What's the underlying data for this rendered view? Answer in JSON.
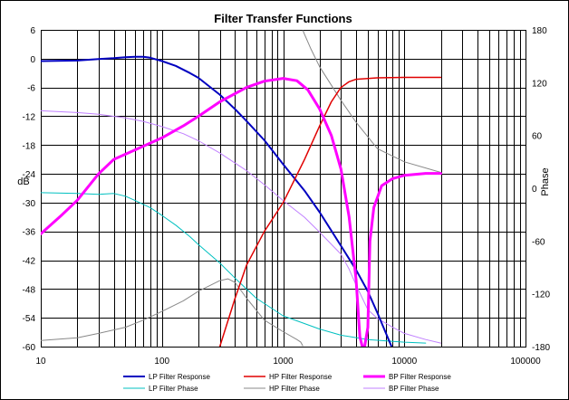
{
  "chart_data": {
    "type": "line",
    "title": "Filter Transfer Functions",
    "ylabel": "dB",
    "y2label": "Phase",
    "xscale": "log",
    "xlim": [
      10,
      100000
    ],
    "ylim": [
      -60,
      6
    ],
    "y2lim": [
      -180,
      180
    ],
    "grid": true,
    "legend_position": "bottom",
    "x_tick_labels": [
      "10",
      "100",
      "1000",
      "10000",
      "100000"
    ],
    "y_tick_labels": [
      "6",
      "0",
      "-6",
      "-12",
      "-18",
      "-24",
      "-30",
      "-36",
      "-42",
      "-48",
      "-54",
      "-60"
    ],
    "y2_tick_labels": [
      "180",
      "120",
      "60",
      "0",
      "-60",
      "-120",
      "-180"
    ],
    "series": [
      {
        "name": "LP Filter Response",
        "axis": "left",
        "color": "#0000c0",
        "width": 2,
        "points": [
          [
            10,
            -0.5
          ],
          [
            20,
            -0.4
          ],
          [
            30,
            -0.1
          ],
          [
            40,
            0.1
          ],
          [
            50,
            0.3
          ],
          [
            60,
            0.4
          ],
          [
            70,
            0.4
          ],
          [
            80,
            0.2
          ],
          [
            100,
            -0.5
          ],
          [
            130,
            -1.5
          ],
          [
            170,
            -3
          ],
          [
            200,
            -4
          ],
          [
            300,
            -7.5
          ],
          [
            400,
            -10.5
          ],
          [
            500,
            -13
          ],
          [
            700,
            -17
          ],
          [
            1000,
            -22
          ],
          [
            1500,
            -27.5
          ],
          [
            2000,
            -32
          ],
          [
            3000,
            -39
          ],
          [
            4000,
            -44
          ],
          [
            5000,
            -48.5
          ],
          [
            6000,
            -53
          ],
          [
            7000,
            -57
          ],
          [
            8000,
            -60.5
          ]
        ]
      },
      {
        "name": "LP Filter Phase",
        "axis": "right",
        "color": "#00c0c0",
        "width": 1,
        "points": [
          [
            10,
            -5
          ],
          [
            20,
            -6
          ],
          [
            30,
            -7
          ],
          [
            40,
            -6
          ],
          [
            50,
            -9
          ],
          [
            60,
            -14
          ],
          [
            80,
            -22
          ],
          [
            100,
            -31
          ],
          [
            130,
            -42
          ],
          [
            170,
            -55
          ],
          [
            200,
            -64
          ],
          [
            300,
            -85
          ],
          [
            400,
            -102
          ],
          [
            600,
            -125
          ],
          [
            1000,
            -145
          ],
          [
            2000,
            -160
          ],
          [
            3000,
            -167
          ],
          [
            5000,
            -172
          ],
          [
            10000,
            -175
          ],
          [
            15000,
            -176
          ]
        ]
      },
      {
        "name": "HP Filter Response",
        "axis": "left",
        "color": "#e00000",
        "width": 1.5,
        "points": [
          [
            300,
            -60
          ],
          [
            400,
            -50
          ],
          [
            500,
            -43
          ],
          [
            700,
            -36
          ],
          [
            1000,
            -30
          ],
          [
            1500,
            -21
          ],
          [
            2000,
            -14
          ],
          [
            2500,
            -9
          ],
          [
            3000,
            -6
          ],
          [
            3500,
            -4.8
          ],
          [
            4000,
            -4.3
          ],
          [
            6000,
            -4.0
          ],
          [
            10000,
            -3.9
          ],
          [
            20000,
            -3.9
          ]
        ]
      },
      {
        "name": "HP Filter Phase",
        "axis": "right",
        "color": "#888888",
        "width": 1,
        "points": [
          [
            10,
            -173
          ],
          [
            20,
            -170
          ],
          [
            30,
            -165
          ],
          [
            50,
            -158
          ],
          [
            70,
            -150
          ],
          [
            100,
            -140
          ],
          [
            150,
            -128
          ],
          [
            200,
            -117
          ],
          [
            300,
            -105
          ],
          [
            350,
            -103
          ],
          [
            400,
            -107
          ],
          [
            500,
            -125
          ],
          [
            700,
            -150
          ],
          [
            1000,
            -163
          ],
          [
            1300,
            -172
          ],
          [
            1400,
            -175
          ],
          [
            1450,
            -179
          ],
          [
            1460,
            179
          ],
          [
            1500,
            175
          ],
          [
            1700,
            158
          ],
          [
            2000,
            138
          ],
          [
            3000,
            100
          ],
          [
            4000,
            75
          ],
          [
            6000,
            45
          ],
          [
            10000,
            30
          ],
          [
            20000,
            18
          ]
        ]
      },
      {
        "name": "BP Filter Response",
        "axis": "left",
        "color": "#ff00ff",
        "width": 3,
        "points": [
          [
            10,
            -36.5
          ],
          [
            15,
            -32.5
          ],
          [
            20,
            -29.5
          ],
          [
            30,
            -24
          ],
          [
            40,
            -21
          ],
          [
            60,
            -19
          ],
          [
            100,
            -16.5
          ],
          [
            150,
            -14
          ],
          [
            200,
            -12
          ],
          [
            300,
            -9
          ],
          [
            500,
            -6
          ],
          [
            700,
            -4.7
          ],
          [
            1000,
            -4.1
          ],
          [
            1300,
            -4.6
          ],
          [
            1600,
            -6.5
          ],
          [
            2000,
            -10.5
          ],
          [
            2500,
            -16
          ],
          [
            3000,
            -23
          ],
          [
            3500,
            -33
          ],
          [
            4000,
            -46
          ],
          [
            4300,
            -58
          ],
          [
            4500,
            -60
          ],
          [
            4700,
            -60
          ],
          [
            5000,
            -56
          ],
          [
            5200,
            -38
          ],
          [
            5600,
            -31
          ],
          [
            6500,
            -26.5
          ],
          [
            8000,
            -25
          ],
          [
            10000,
            -24.3
          ],
          [
            15000,
            -23.9
          ],
          [
            20000,
            -23.9
          ]
        ]
      },
      {
        "name": "BP Filter Phase",
        "axis": "right",
        "color": "#c080ff",
        "width": 1,
        "points": [
          [
            10,
            88
          ],
          [
            20,
            86
          ],
          [
            30,
            84
          ],
          [
            50,
            80
          ],
          [
            70,
            76
          ],
          [
            100,
            70
          ],
          [
            150,
            62
          ],
          [
            200,
            54
          ],
          [
            300,
            40
          ],
          [
            500,
            20
          ],
          [
            700,
            4
          ],
          [
            1000,
            -14
          ],
          [
            1500,
            -33
          ],
          [
            2000,
            -50
          ],
          [
            3000,
            -75
          ],
          [
            3500,
            -92
          ],
          [
            4000,
            -110
          ],
          [
            4500,
            -125
          ],
          [
            5000,
            -138
          ],
          [
            6000,
            -148
          ],
          [
            8000,
            -158
          ],
          [
            10000,
            -165
          ],
          [
            15000,
            -172
          ],
          [
            20000,
            -176
          ]
        ]
      }
    ]
  },
  "legend": [
    {
      "label": "LP Filter Response",
      "color": "#0000c0",
      "width": 2
    },
    {
      "label": "HP Filter Response",
      "color": "#e00000",
      "width": 1.5
    },
    {
      "label": "BP Filter Response",
      "color": "#ff00ff",
      "width": 3
    },
    {
      "label": "LP Filter Phase",
      "color": "#00c0c0",
      "width": 1
    },
    {
      "label": "HP Filter Phase",
      "color": "#888888",
      "width": 1
    },
    {
      "label": "BP Filter Phase",
      "color": "#c080ff",
      "width": 1
    }
  ]
}
